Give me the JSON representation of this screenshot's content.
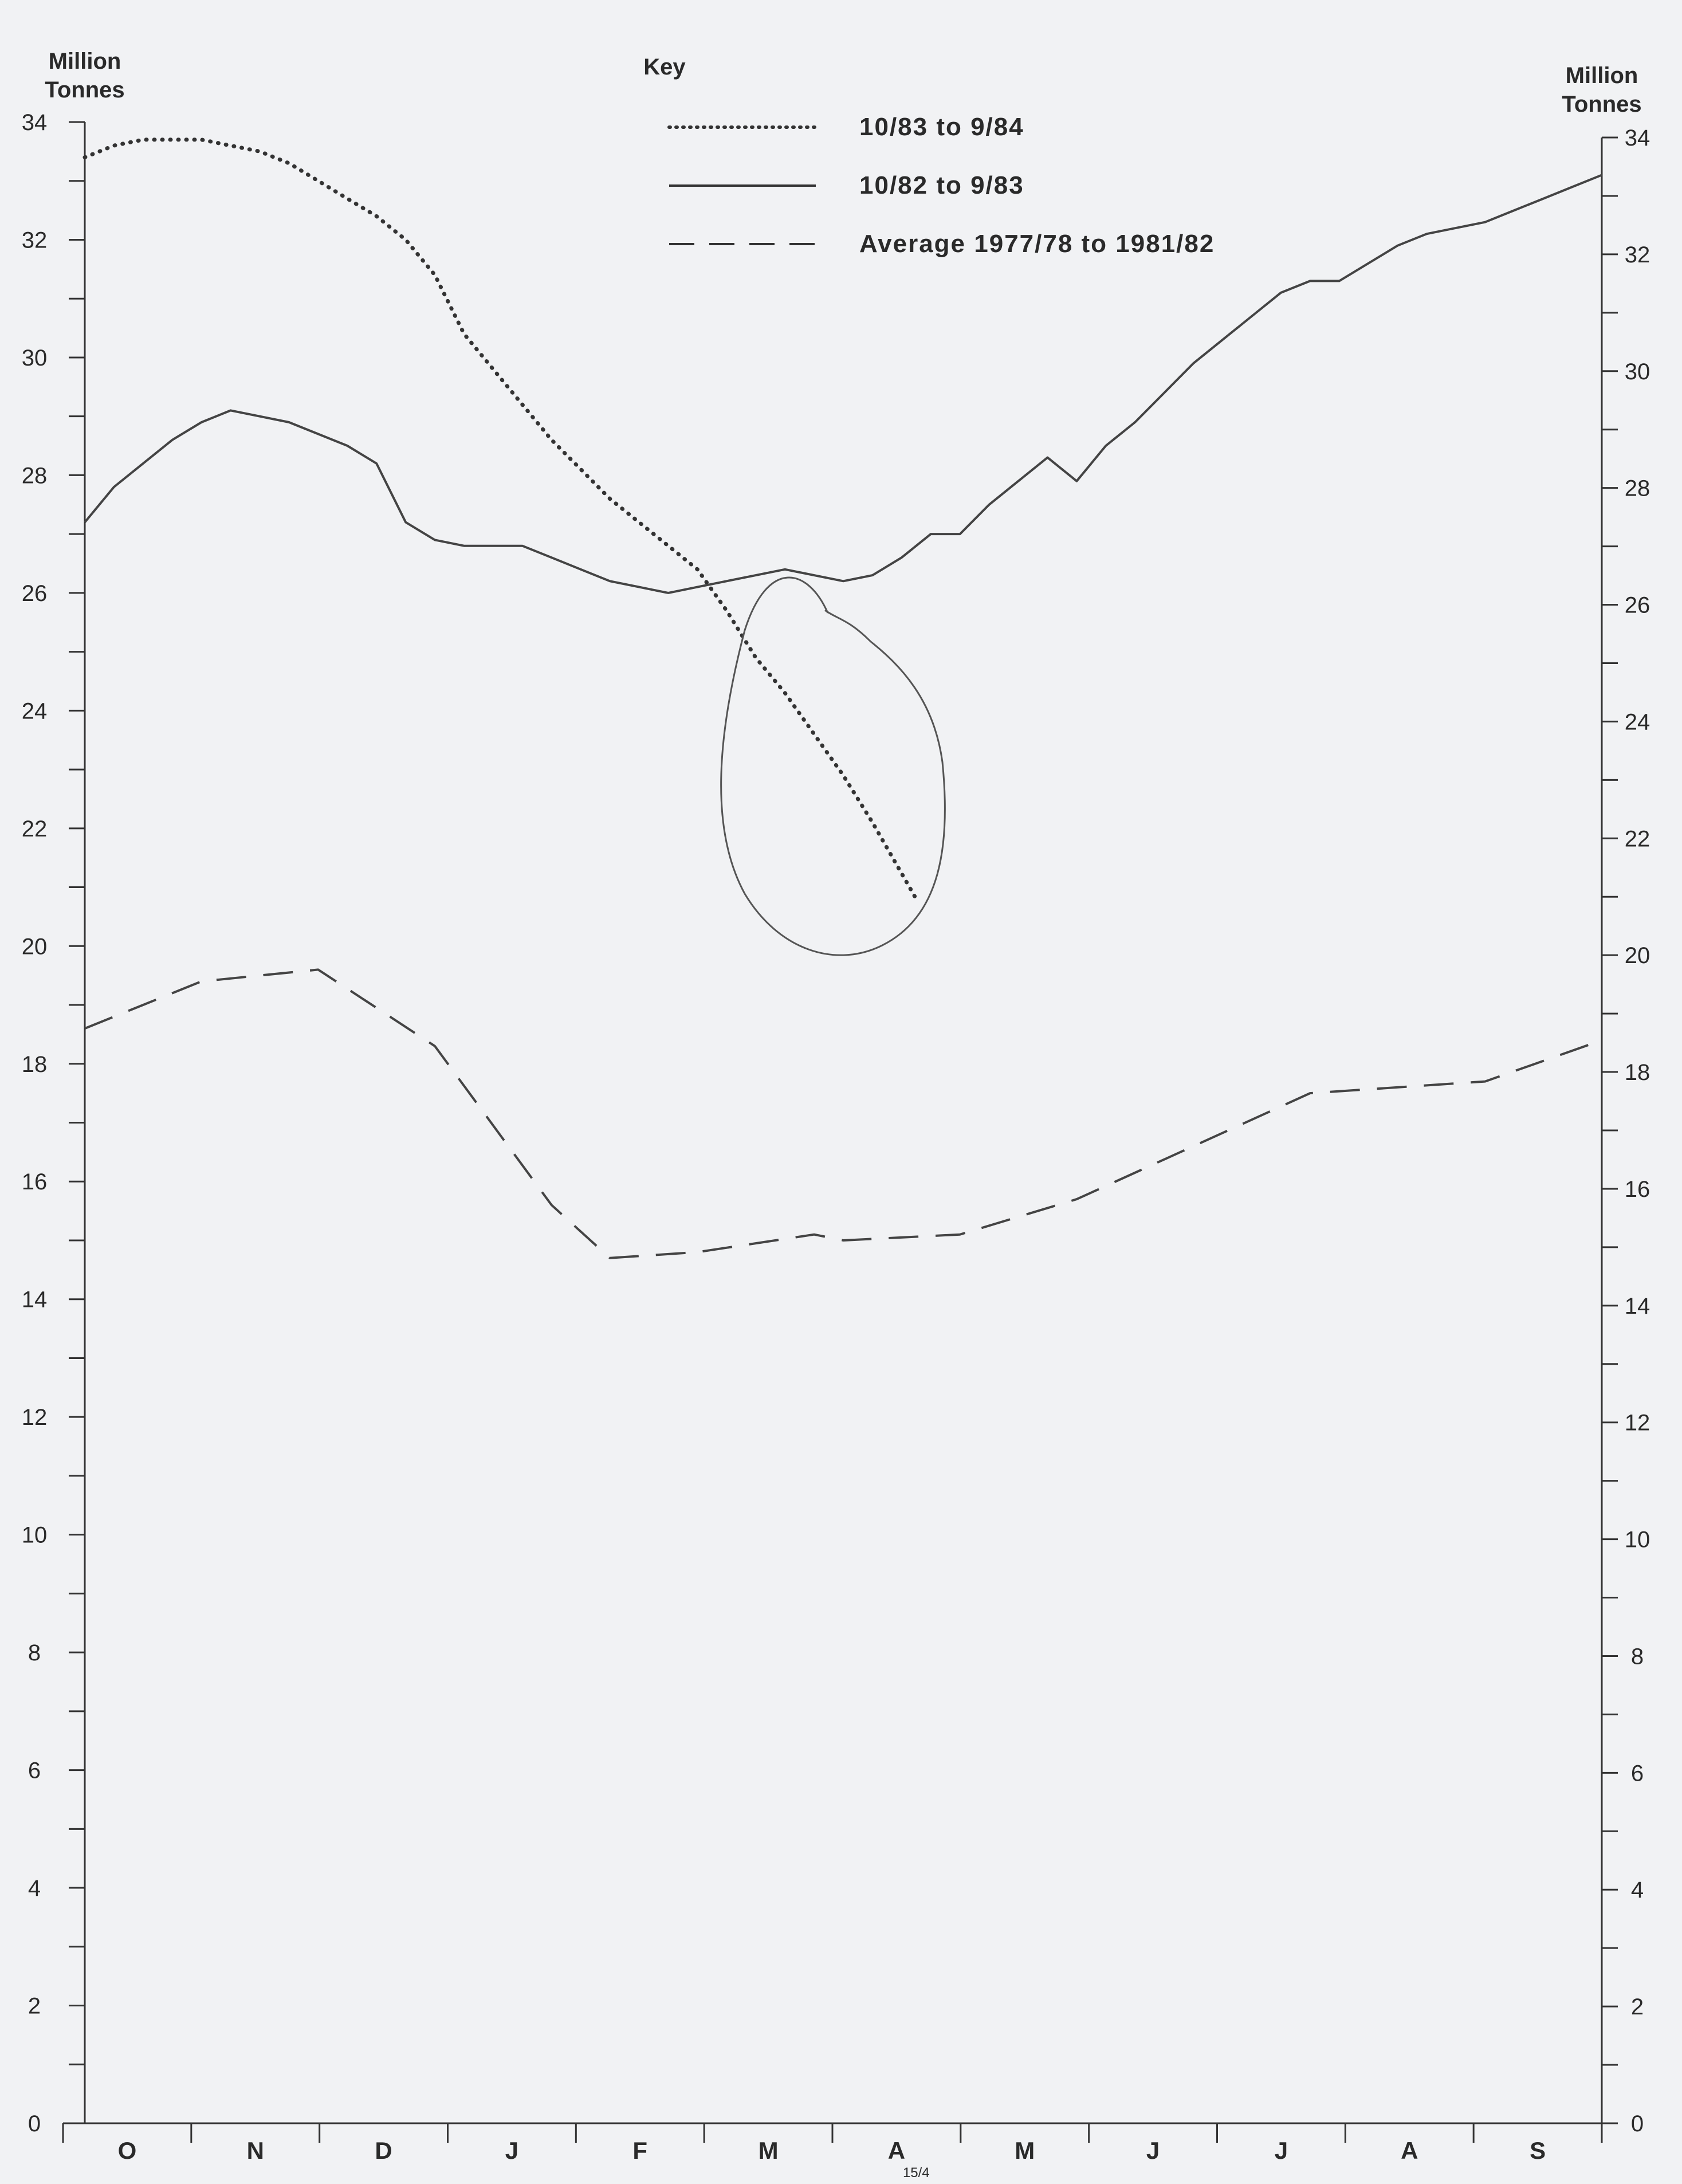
{
  "chart_data": {
    "type": "line",
    "left_axis_title": [
      "Million",
      "Tonnes"
    ],
    "right_axis_title": [
      "Million",
      "Tonnes"
    ],
    "legend_title": "Key",
    "legend_placement": "top-center",
    "ylim": [
      0,
      34
    ],
    "yticks": [
      "0",
      "2",
      "4",
      "6",
      "8",
      "10",
      "12",
      "14",
      "16",
      "18",
      "20",
      "22",
      "24",
      "26",
      "28",
      "30",
      "32",
      "34"
    ],
    "right_yticks": [
      "0",
      "2",
      "4",
      "6",
      "8",
      "10",
      "12",
      "14",
      "16",
      "18",
      "20",
      "22",
      "24",
      "26",
      "28",
      "30",
      "32",
      "34"
    ],
    "xlim": [
      0,
      52
    ],
    "months": [
      "O",
      "N",
      "D",
      "J",
      "F",
      "M",
      "A",
      "M",
      "J",
      "J",
      "A",
      "S"
    ],
    "annotation": "15/4",
    "annotation_week": 28.5,
    "series": [
      {
        "name": "10/83 to 9/84",
        "style": "dotted",
        "x": [
          0,
          1,
          2,
          3,
          4,
          5,
          6,
          7,
          8,
          9,
          10,
          11,
          12,
          13,
          14,
          15,
          16,
          17,
          18,
          19,
          20,
          21,
          22,
          23,
          24,
          25,
          26,
          27,
          28.5
        ],
        "y": [
          33.4,
          33.6,
          33.7,
          33.7,
          33.7,
          33.6,
          33.5,
          33.3,
          33.0,
          32.7,
          32.4,
          32.0,
          31.4,
          30.4,
          29.8,
          29.2,
          28.6,
          28.1,
          27.6,
          27.2,
          26.8,
          26.4,
          25.7,
          24.9,
          24.3,
          23.6,
          22.9,
          22.1,
          20.8
        ]
      },
      {
        "name": "10/82 to 9/83",
        "style": "solid",
        "x": [
          0,
          1,
          2,
          3,
          4,
          5,
          6,
          7,
          8,
          9,
          10,
          11,
          12,
          13,
          14,
          15,
          16,
          17,
          18,
          19,
          20,
          21,
          22,
          23,
          24,
          25,
          26,
          27,
          28,
          29,
          30,
          31,
          32,
          33,
          34,
          35,
          36,
          37,
          38,
          39,
          40,
          41,
          42,
          43,
          44,
          45,
          46,
          47,
          48,
          49,
          50,
          51,
          52
        ],
        "y": [
          27.2,
          27.8,
          28.2,
          28.6,
          28.9,
          29.1,
          29.0,
          28.9,
          28.7,
          28.5,
          28.2,
          27.2,
          26.9,
          26.8,
          26.8,
          26.8,
          26.6,
          26.4,
          26.2,
          26.1,
          26.0,
          26.1,
          26.2,
          26.3,
          26.4,
          26.3,
          26.2,
          26.3,
          26.6,
          27.0,
          27.0,
          27.5,
          27.9,
          28.3,
          27.9,
          28.5,
          28.9,
          29.4,
          29.9,
          30.3,
          30.7,
          31.1,
          31.3,
          31.3,
          31.6,
          31.9,
          32.1,
          32.2,
          32.3,
          32.5,
          32.7,
          32.9,
          33.1
        ]
      },
      {
        "name": "Average 1977/78 to 1981/82",
        "style": "dashed",
        "x": [
          0,
          4,
          8,
          12,
          16,
          18,
          21,
          25,
          26,
          30,
          34,
          38,
          42,
          48,
          52
        ],
        "y": [
          18.6,
          19.4,
          19.6,
          18.3,
          15.6,
          14.7,
          14.8,
          15.1,
          15.0,
          15.1,
          15.7,
          16.6,
          17.5,
          17.7,
          18.4
        ]
      }
    ]
  }
}
